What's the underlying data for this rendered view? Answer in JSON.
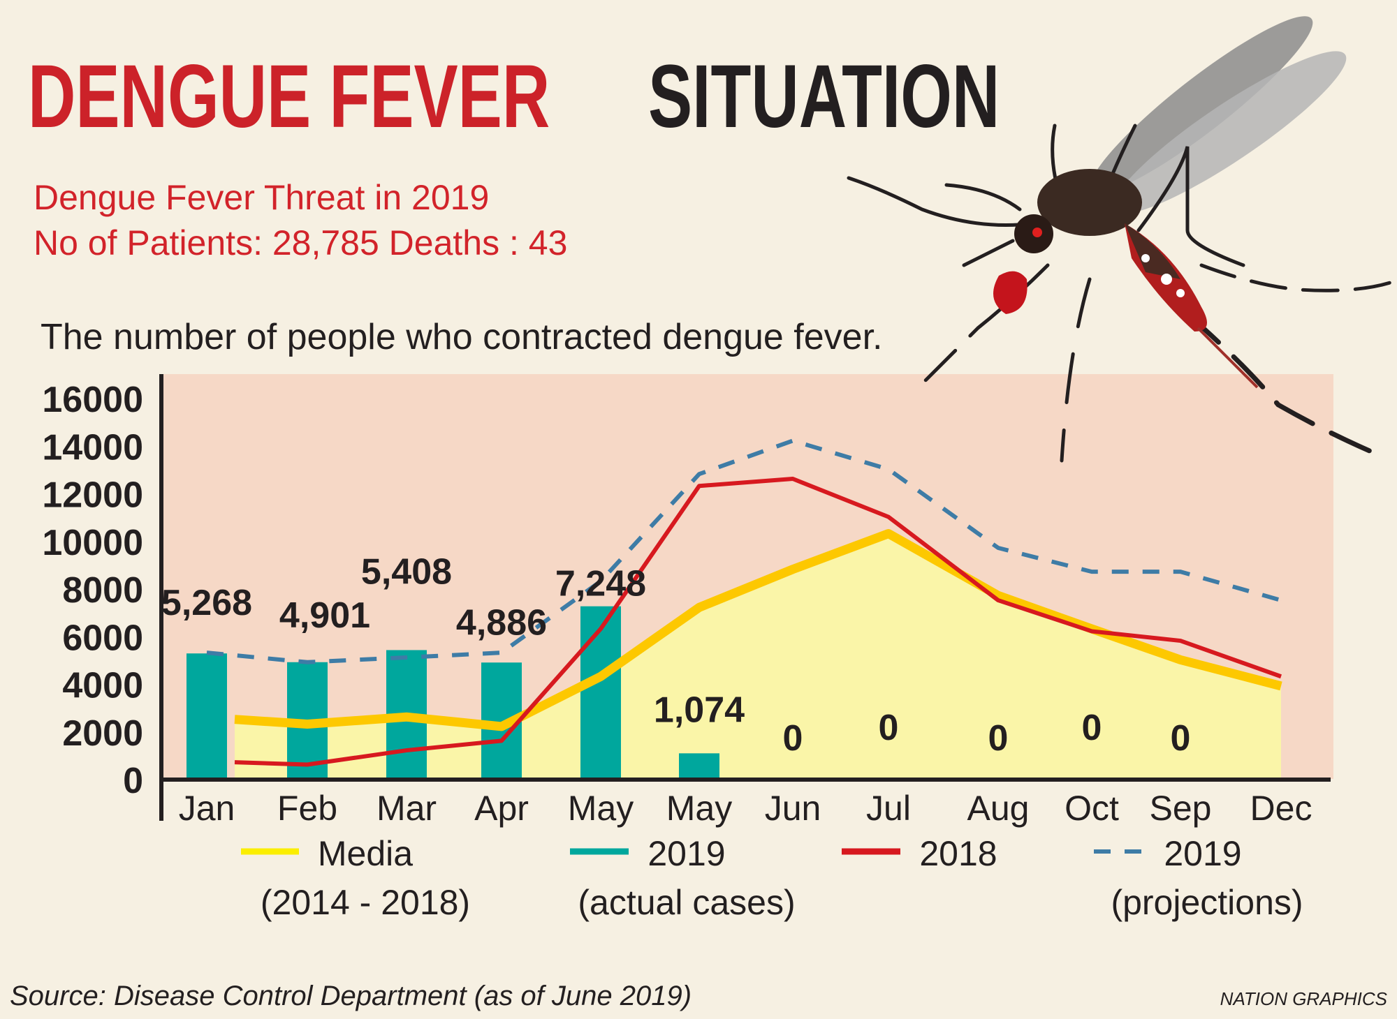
{
  "title": {
    "part1": "DENGUE FEVER",
    "part2": "SITUATION"
  },
  "subtitle": {
    "line1": "Dengue Fever Threat in 2019",
    "line2": "No of Patients: 28,785 Deaths : 43"
  },
  "description": "The number of people who contracted dengue fever.",
  "source": "Source: Disease Control Department (as of June 2019)",
  "credit": "NATION GRAPHICS",
  "colors": {
    "title_red": "#cc2229",
    "title_dark": "#231f20",
    "plot_bg": "#f6d8c6",
    "media_fill": "#faf5a8",
    "media_line": "#fdc800",
    "actual_2019": "#00a79d",
    "line_2018": "#d7191f",
    "projection_2019": "#3e7ca6"
  },
  "illustration": "mosquito",
  "chart_data": {
    "type": "bar+line",
    "categories": [
      "Jan",
      "Feb",
      "Mar",
      "Apr",
      "May",
      "May",
      "Jun",
      "Jul",
      "Aug",
      "Oct",
      "Sep",
      "Dec"
    ],
    "ylim": [
      0,
      16000
    ],
    "yticks": [
      "0",
      "2000",
      "4000",
      "6000",
      "8000",
      "10000",
      "12000",
      "14000",
      "16000"
    ],
    "ytick_values": [
      0,
      2000,
      4000,
      6000,
      8000,
      10000,
      12000,
      14000,
      16000
    ],
    "grid": false,
    "legend_position": "bottom",
    "series": [
      {
        "name": "2019 (actual cases)",
        "legend_line1": "2019",
        "legend_line2": "(actual cases)",
        "type": "bar",
        "values": [
          5268,
          4901,
          5408,
          4886,
          7248,
          1074,
          0,
          0,
          0,
          0,
          0,
          null
        ],
        "labels": [
          "5,268",
          "4,901",
          "5,408",
          "4,886",
          "7,248",
          "1,074",
          "0",
          "0",
          "0",
          "0",
          "0",
          ""
        ]
      },
      {
        "name": "Media (2014 - 2018)",
        "legend_line1": "Media",
        "legend_line2": "(2014 - 2018)",
        "type": "area",
        "values": [
          2500,
          2300,
          2600,
          2200,
          4300,
          7200,
          8800,
          10300,
          7700,
          6300,
          5000,
          3900
        ]
      },
      {
        "name": "2018",
        "legend_line1": "2018",
        "legend_line2": "",
        "type": "line",
        "values": [
          700,
          600,
          1200,
          1600,
          6300,
          12300,
          12600,
          11000,
          7500,
          6200,
          5800,
          4300
        ]
      },
      {
        "name": "2019 (projections)",
        "legend_line1": "2019",
        "legend_line2": "(projections)",
        "type": "dashed-line",
        "values": [
          5300,
          4900,
          5100,
          5300,
          8300,
          12800,
          14200,
          13000,
          9700,
          8700,
          8700,
          7500
        ]
      }
    ]
  }
}
